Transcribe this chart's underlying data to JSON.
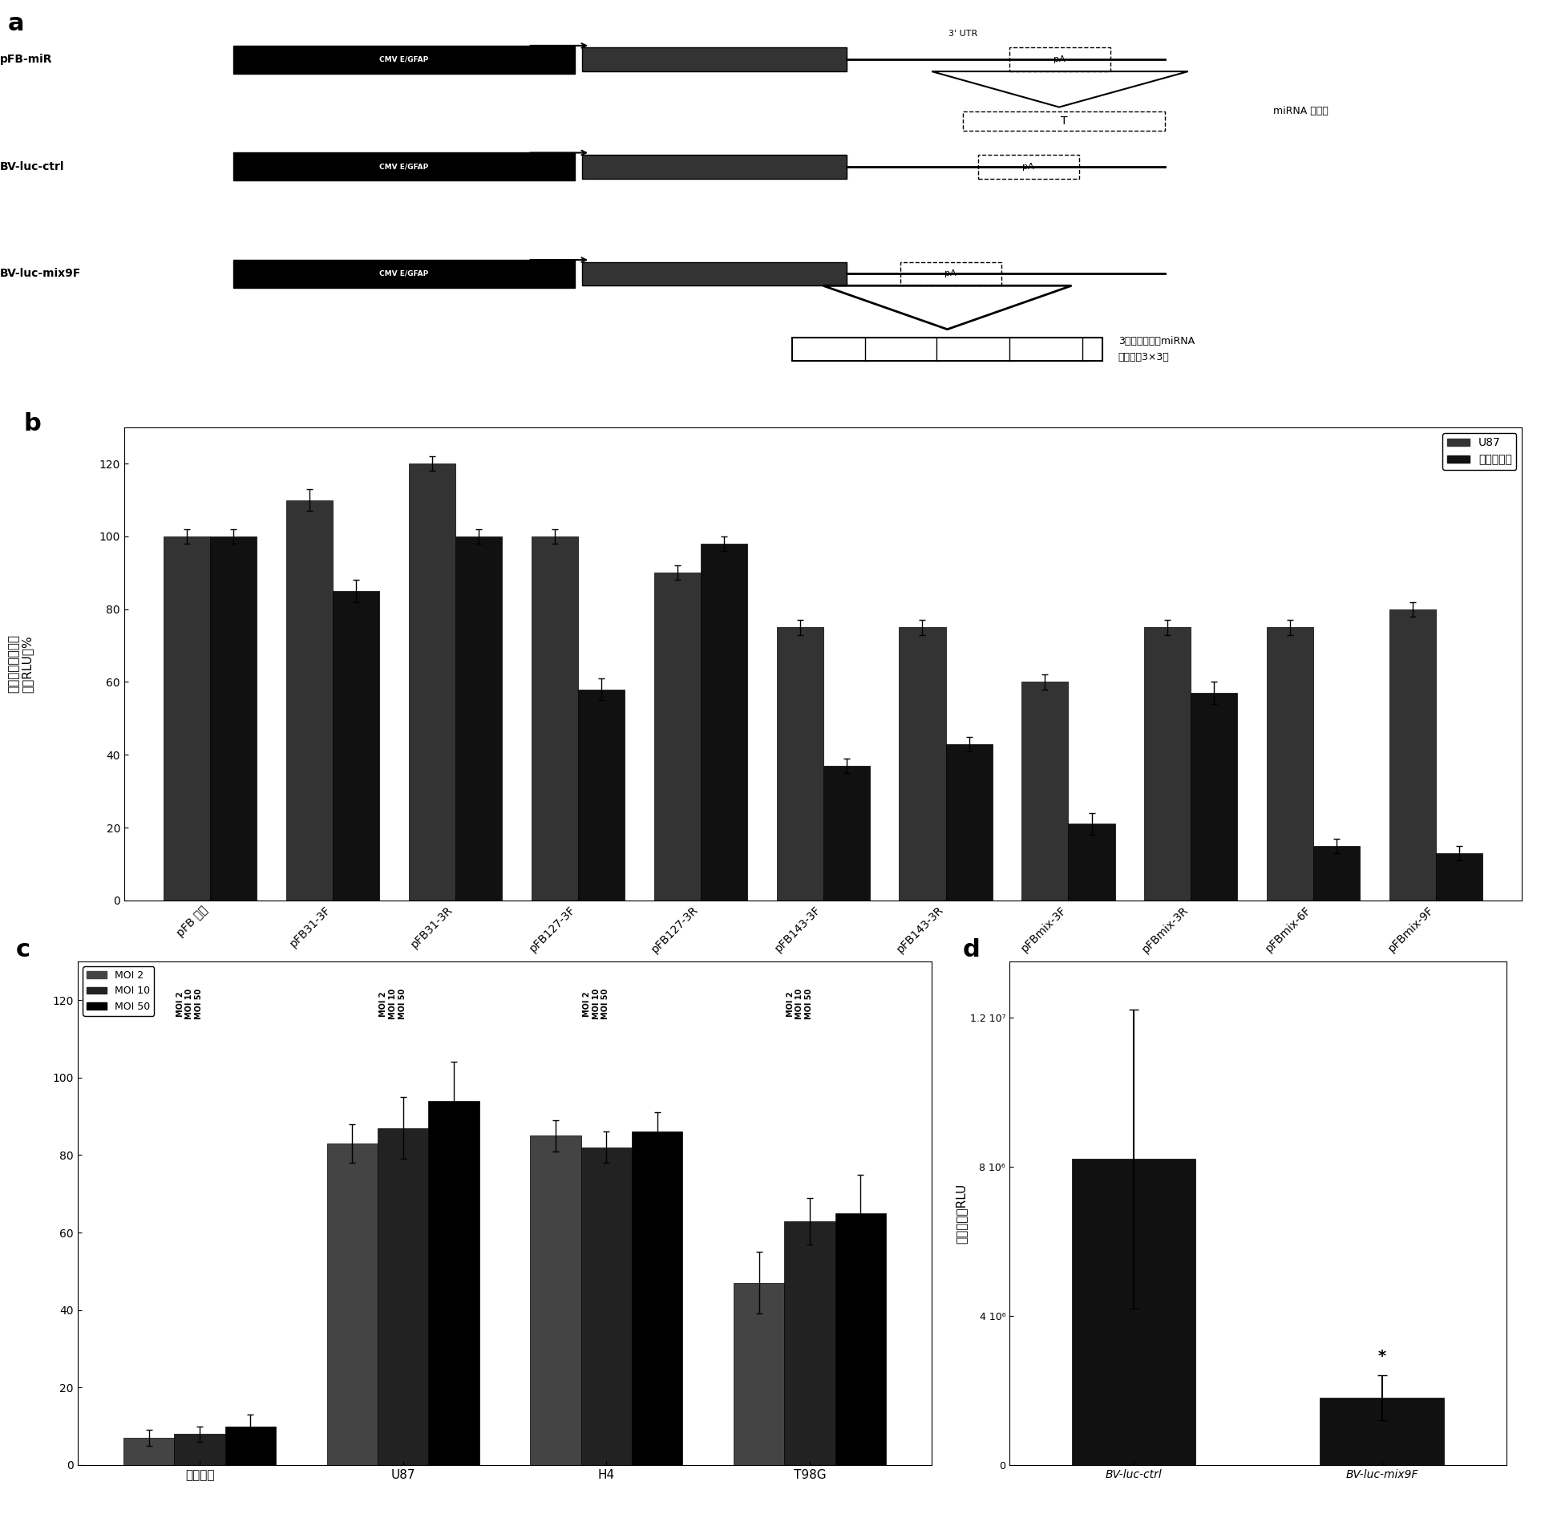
{
  "panel_a": {
    "constructs": [
      {
        "label": "pFB-miR",
        "cmv_text": "CMV E/GFAP",
        "has_3utr": true,
        "has_single_target": true,
        "annotation": "miRNA 靶序列",
        "pa_label": "pA"
      },
      {
        "label": "BV-luc-ctrl",
        "cmv_text": "CMV E/GFAP",
        "has_3utr": false,
        "has_single_target": false,
        "annotation": null,
        "pa_label": "pA"
      },
      {
        "label": "BV-luc-mix9F",
        "cmv_text": "CMV E/GFAP",
        "has_3utr": false,
        "has_multi_target": true,
        "annotation": "3个拷贝的混杂miRNA\n靶序列（3×3）",
        "pa_label": "pA"
      }
    ]
  },
  "panel_b": {
    "categories": [
      "pFB 对照",
      "pFB31-3F",
      "pFB31-3R",
      "pFB127-3F",
      "pFB127-3R",
      "pFB143-3F",
      "pFB143-3R",
      "pFBmix-3F",
      "pFBmix-3R",
      "pFBmix-6F",
      "pFBmix-9F"
    ],
    "U87": [
      100,
      110,
      120,
      100,
      90,
      75,
      75,
      60,
      75,
      75,
      80
    ],
    "astro": [
      100,
      85,
      100,
      58,
      98,
      37,
      43,
      21,
      57,
      15,
      13
    ],
    "U87_err": [
      2,
      3,
      2,
      2,
      2,
      2,
      2,
      2,
      2,
      2,
      2
    ],
    "astro_err": [
      2,
      3,
      2,
      3,
      2,
      2,
      2,
      3,
      3,
      2,
      2
    ],
    "ylabel": "荧光素酶基因表达\n对照RLU的%",
    "legend_U87": "U87",
    "legend_astro": "人星形细胞",
    "ylim": [
      0,
      130
    ]
  },
  "panel_c": {
    "groups": [
      "星形细胞",
      "U87",
      "H4",
      "T98G"
    ],
    "MOI2": [
      7,
      83,
      85,
      47
    ],
    "MOI10": [
      8,
      87,
      82,
      63
    ],
    "MOI50": [
      10,
      94,
      86,
      65
    ],
    "MOI2_err": [
      2,
      5,
      4,
      8
    ],
    "MOI10_err": [
      2,
      8,
      4,
      6
    ],
    "MOI50_err": [
      3,
      10,
      5,
      10
    ],
    "ylabel": "荧光素酶基因表达\n对照RLU的%",
    "ylim": [
      0,
      130
    ],
    "legend_MOI2": "MOI 2",
    "legend_MOI10": "MOI 10",
    "legend_MOI50": "MOI 50"
  },
  "panel_d": {
    "labels": [
      "BV-luc-ctrl",
      "BV-luc-mix9F"
    ],
    "values": [
      8200000.0,
      1800000.0
    ],
    "errors": [
      4000000.0,
      600000.0
    ],
    "ylabel": "每个组织的RLU",
    "yticks": [
      0,
      4000000.0,
      8000000.0,
      12000000.0
    ],
    "yticklabels": [
      "0",
      "4 10⁶",
      "8 10⁶",
      "1.2 10⁷"
    ],
    "star_label": "*"
  },
  "colors": {
    "dark_gray": "#1a1a1a",
    "medium_gray": "#555555",
    "black": "#000000",
    "white": "#ffffff",
    "light_gray": "#aaaaaa"
  }
}
